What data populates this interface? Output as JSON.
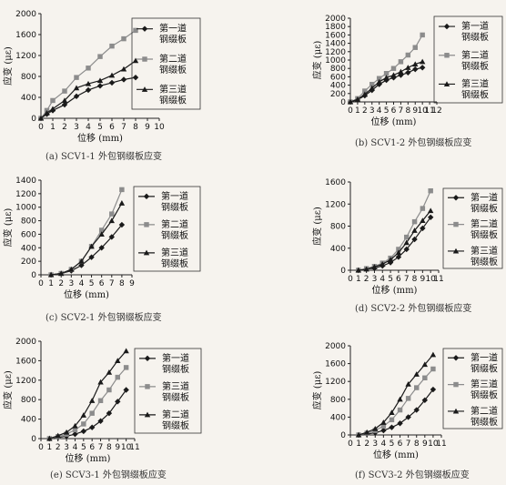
{
  "chart_data": [
    {
      "type": "line",
      "caption": "(a)  SCV1-1 外包钢缀板应变",
      "xlabel": "位移 (mm)",
      "ylabel": "应变 (με)",
      "xlim": [
        0,
        10
      ],
      "ylim": [
        0,
        2000
      ],
      "xticks": [
        "0",
        "1",
        "2",
        "3",
        "4",
        "5",
        "6",
        "7",
        "8",
        "9",
        "10"
      ],
      "yticks": [
        "0",
        "400",
        "800",
        "1200",
        "1600",
        "2000"
      ],
      "x": [
        0,
        0.5,
        1,
        2,
        3,
        4,
        5,
        6,
        7,
        8
      ],
      "legend": [
        "第一道\n钢缀板",
        "第二道\n钢缀板",
        "第三道\n钢缀板"
      ],
      "series": [
        {
          "marker": "diamond",
          "color": "#1a1a1a",
          "values": [
            0,
            80,
            150,
            260,
            420,
            540,
            620,
            680,
            740,
            780
          ]
        },
        {
          "marker": "square",
          "color": "#8c8c8c",
          "values": [
            0,
            150,
            340,
            520,
            780,
            960,
            1180,
            1380,
            1520,
            1680
          ]
        },
        {
          "marker": "triangle",
          "color": "#1a1a1a",
          "values": [
            0,
            100,
            180,
            340,
            580,
            660,
            720,
            820,
            940,
            1100
          ]
        }
      ]
    },
    {
      "type": "line",
      "caption": "(b)  SCV1-2 外包钢缀板应变",
      "xlabel": "位移 (mm)",
      "ylabel": "应变 (με)",
      "xlim": [
        0,
        12
      ],
      "ylim": [
        0,
        2000
      ],
      "xticks": [
        "0",
        "1",
        "2",
        "3",
        "4",
        "5",
        "6",
        "7",
        "8",
        "9",
        "10",
        "11",
        "12"
      ],
      "xticklabels_text": "0 1 2 3 4 5 6 7 8 9 10 11 12",
      "yticks": [
        "0",
        "200",
        "400",
        "600",
        "800",
        "1000",
        "1200",
        "1400",
        "1600",
        "1800",
        "2000"
      ],
      "x": [
        0,
        1,
        2,
        3,
        4,
        5,
        6,
        7,
        8,
        9,
        10
      ],
      "legend": [
        "第一道\n钢缀板",
        "第二道\n钢缀板",
        "第三道\n钢缀板"
      ],
      "series": [
        {
          "marker": "diamond",
          "color": "#1a1a1a",
          "values": [
            0,
            50,
            150,
            280,
            420,
            520,
            580,
            640,
            700,
            780,
            820
          ]
        },
        {
          "marker": "square",
          "color": "#8c8c8c",
          "values": [
            0,
            80,
            260,
            420,
            560,
            680,
            800,
            960,
            1120,
            1300,
            1600
          ]
        },
        {
          "marker": "triangle",
          "color": "#1a1a1a",
          "values": [
            0,
            60,
            180,
            330,
            480,
            580,
            640,
            720,
            820,
            900,
            960
          ]
        }
      ]
    },
    {
      "type": "line",
      "caption": "(c)  SCV2-1 外包钢缀板应变",
      "xlabel": "位移 (mm)",
      "ylabel": "应变 (με)",
      "xlim": [
        0,
        9
      ],
      "ylim": [
        0,
        1400
      ],
      "xticks": [
        "0",
        "1",
        "2",
        "3",
        "4",
        "5",
        "6",
        "7",
        "8",
        "9"
      ],
      "yticks": [
        "0",
        "200",
        "400",
        "600",
        "800",
        "1000",
        "1200",
        "1400"
      ],
      "x": [
        1,
        2,
        3,
        4,
        5,
        6,
        7,
        8
      ],
      "legend": [
        "第一道\n钢缀板",
        "第二道\n钢缀板",
        "第三道\n钢缀板"
      ],
      "series": [
        {
          "marker": "diamond",
          "color": "#1a1a1a",
          "values": [
            0,
            20,
            60,
            140,
            260,
            400,
            560,
            740
          ]
        },
        {
          "marker": "square",
          "color": "#8c8c8c",
          "values": [
            0,
            20,
            80,
            200,
            420,
            660,
            900,
            1260
          ]
        },
        {
          "marker": "triangle",
          "color": "#1a1a1a",
          "values": [
            0,
            20,
            80,
            200,
            420,
            600,
            800,
            1060
          ]
        }
      ]
    },
    {
      "type": "line",
      "caption": "(d)  SCV2-2 外包钢缀板应变",
      "xlabel": "位移 (mm)",
      "ylabel": "应变 (με)",
      "xlim": [
        0,
        11
      ],
      "ylim": [
        0,
        1600
      ],
      "xticks": [
        "0",
        "1",
        "2",
        "3",
        "4",
        "5",
        "6",
        "7",
        "8",
        "9",
        "10",
        "11"
      ],
      "yticks": [
        "0",
        "400",
        "800",
        "1200",
        "1600"
      ],
      "x": [
        1,
        2,
        3,
        4,
        5,
        6,
        7,
        8,
        9,
        10
      ],
      "legend": [
        "第一道\n钢缀板",
        "第二道\n钢缀板",
        "第三道\n钢缀板"
      ],
      "series": [
        {
          "marker": "diamond",
          "color": "#1a1a1a",
          "values": [
            0,
            20,
            40,
            80,
            140,
            240,
            380,
            560,
            760,
            960
          ]
        },
        {
          "marker": "square",
          "color": "#8c8c8c",
          "values": [
            0,
            30,
            70,
            130,
            220,
            380,
            600,
            880,
            1120,
            1440
          ]
        },
        {
          "marker": "triangle",
          "color": "#1a1a1a",
          "values": [
            0,
            20,
            60,
            110,
            190,
            320,
            500,
            720,
            900,
            1080
          ]
        }
      ]
    },
    {
      "type": "line",
      "caption": "(e)  SCV3-1 外包钢缀板应变",
      "xlabel": "位移 (mm)",
      "ylabel": "应变 (με)",
      "xlim": [
        0,
        11
      ],
      "ylim": [
        0,
        2000
      ],
      "xticks": [
        "0",
        "1",
        "2",
        "3",
        "4",
        "5",
        "6",
        "7",
        "8",
        "9",
        "10",
        "11"
      ],
      "yticks": [
        "0",
        "400",
        "800",
        "1200",
        "1600",
        "2000"
      ],
      "x": [
        1,
        2,
        3,
        4,
        5,
        6,
        7,
        8,
        9,
        10
      ],
      "legend": [
        "第一道\n钢缀板",
        "第三道\n钢缀板",
        "第二道\n钢缀板"
      ],
      "series": [
        {
          "marker": "diamond",
          "color": "#1a1a1a",
          "values": [
            0,
            20,
            50,
            90,
            150,
            230,
            360,
            520,
            760,
            1000
          ]
        },
        {
          "marker": "square",
          "color": "#8c8c8c",
          "values": [
            0,
            40,
            90,
            180,
            300,
            520,
            780,
            1000,
            1260,
            1460
          ]
        },
        {
          "marker": "triangle",
          "color": "#1a1a1a",
          "values": [
            0,
            60,
            130,
            260,
            480,
            780,
            1160,
            1360,
            1600,
            1800
          ]
        }
      ]
    },
    {
      "type": "line",
      "caption": "(f)  SCV3-2 外包钢缀板应变",
      "xlabel": "位移 (mm)",
      "ylabel": "应变 (με)",
      "xlim": [
        0,
        11
      ],
      "ylim": [
        0,
        2000
      ],
      "xticks": [
        "0",
        "1",
        "2",
        "3",
        "4",
        "5",
        "6",
        "7",
        "8",
        "9",
        "10",
        "11"
      ],
      "yticks": [
        "0",
        "400",
        "800",
        "1200",
        "1600",
        "2000"
      ],
      "x": [
        1,
        2,
        3,
        4,
        5,
        6,
        7,
        8,
        9,
        10
      ],
      "legend": [
        "第一道\n钢缀板",
        "第三道\n钢缀板",
        "第二道\n钢缀板"
      ],
      "series": [
        {
          "marker": "diamond",
          "color": "#1a1a1a",
          "values": [
            0,
            20,
            50,
            100,
            170,
            260,
            400,
            560,
            780,
            1020
          ]
        },
        {
          "marker": "square",
          "color": "#8c8c8c",
          "values": [
            0,
            40,
            100,
            200,
            340,
            560,
            820,
            1060,
            1280,
            1480
          ]
        },
        {
          "marker": "triangle",
          "color": "#1a1a1a",
          "values": [
            0,
            60,
            140,
            280,
            500,
            800,
            1140,
            1360,
            1580,
            1800
          ]
        }
      ]
    }
  ]
}
